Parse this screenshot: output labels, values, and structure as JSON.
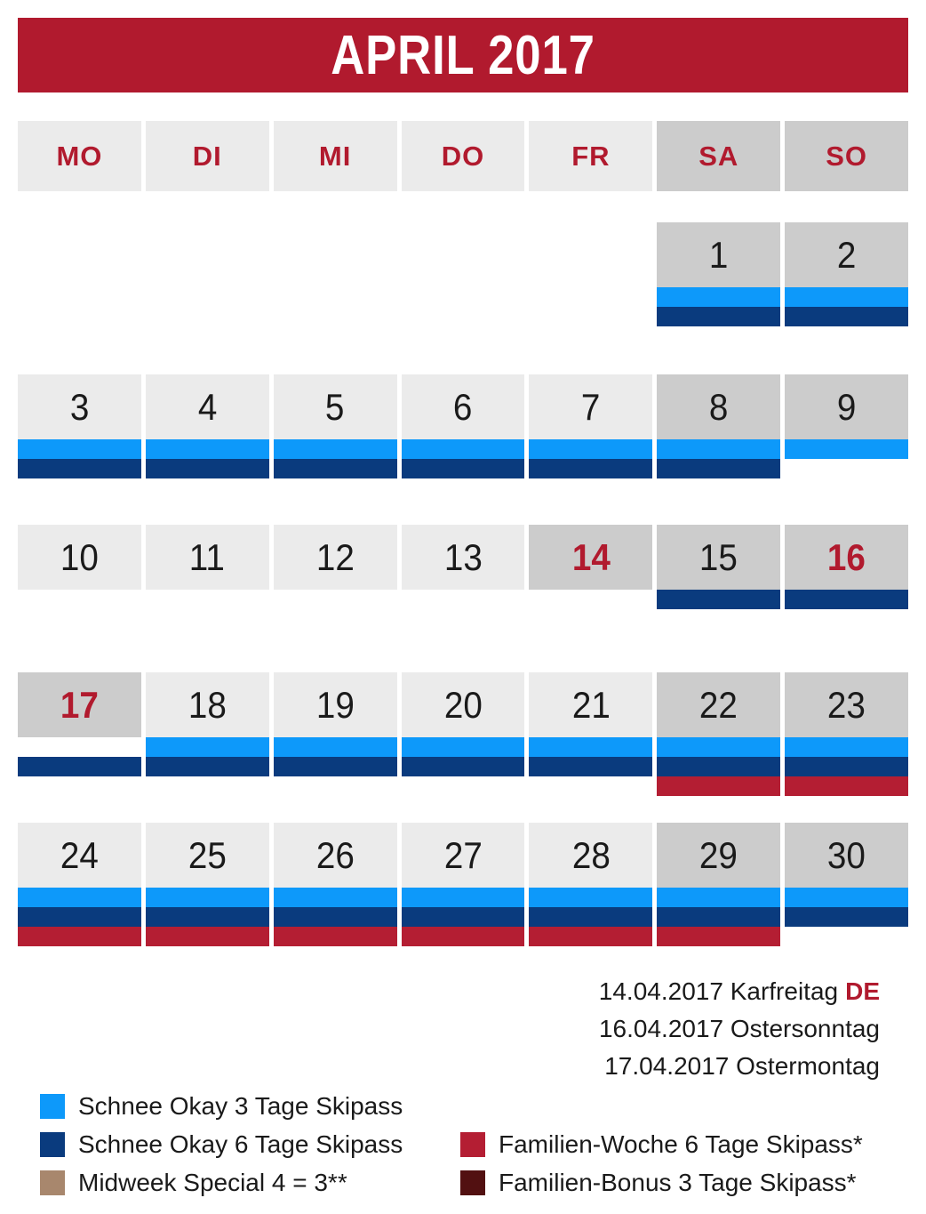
{
  "title": "APRIL 2017",
  "colors": {
    "header_red": "#B11A2E",
    "text_red": "#B11A2E",
    "blue3": "#0D99FA",
    "blue6": "#0A3B7E",
    "family_week_red": "#B41E33",
    "family_bonus_maroon": "#521011",
    "midweek_tan": "#A8876D",
    "cell_light": "#EBEBEB",
    "cell_dark": "#CCCCCC",
    "number_dark": "#1A1A1A"
  },
  "weekday_headers": [
    {
      "label": "MO",
      "weekend": false
    },
    {
      "label": "DI",
      "weekend": false
    },
    {
      "label": "MI",
      "weekend": false
    },
    {
      "label": "DO",
      "weekend": false
    },
    {
      "label": "FR",
      "weekend": false
    },
    {
      "label": "SA",
      "weekend": true
    },
    {
      "label": "SO",
      "weekend": true
    }
  ],
  "weeks": [
    {
      "days": [
        null,
        null,
        null,
        null,
        null,
        {
          "num": "1",
          "bg": "dark",
          "red": false,
          "bars": [
            "blue3",
            "blue6"
          ]
        },
        {
          "num": "2",
          "bg": "dark",
          "red": false,
          "bars": [
            "blue3",
            "blue6"
          ]
        }
      ]
    },
    {
      "days": [
        {
          "num": "3",
          "bg": "light",
          "red": false,
          "bars": [
            "blue3",
            "blue6"
          ]
        },
        {
          "num": "4",
          "bg": "light",
          "red": false,
          "bars": [
            "blue3",
            "blue6"
          ]
        },
        {
          "num": "5",
          "bg": "light",
          "red": false,
          "bars": [
            "blue3",
            "blue6"
          ]
        },
        {
          "num": "6",
          "bg": "light",
          "red": false,
          "bars": [
            "blue3",
            "blue6"
          ]
        },
        {
          "num": "7",
          "bg": "light",
          "red": false,
          "bars": [
            "blue3",
            "blue6"
          ]
        },
        {
          "num": "8",
          "bg": "dark",
          "red": false,
          "bars": [
            "blue3",
            "blue6"
          ]
        },
        {
          "num": "9",
          "bg": "dark",
          "red": false,
          "bars": [
            "blue3"
          ]
        }
      ]
    },
    {
      "days": [
        {
          "num": "10",
          "bg": "light",
          "red": false,
          "bars": []
        },
        {
          "num": "11",
          "bg": "light",
          "red": false,
          "bars": []
        },
        {
          "num": "12",
          "bg": "light",
          "red": false,
          "bars": []
        },
        {
          "num": "13",
          "bg": "light",
          "red": false,
          "bars": []
        },
        {
          "num": "14",
          "bg": "dark",
          "red": true,
          "bars": []
        },
        {
          "num": "15",
          "bg": "dark",
          "red": false,
          "bars": [
            "blue6"
          ]
        },
        {
          "num": "16",
          "bg": "dark",
          "red": true,
          "bars": [
            "blue6"
          ]
        }
      ]
    },
    {
      "days": [
        {
          "num": "17",
          "bg": "dark",
          "red": true,
          "bars": [
            "gap",
            "blue6"
          ]
        },
        {
          "num": "18",
          "bg": "light",
          "red": false,
          "bars": [
            "blue3",
            "blue6"
          ]
        },
        {
          "num": "19",
          "bg": "light",
          "red": false,
          "bars": [
            "blue3",
            "blue6"
          ]
        },
        {
          "num": "20",
          "bg": "light",
          "red": false,
          "bars": [
            "blue3",
            "blue6"
          ]
        },
        {
          "num": "21",
          "bg": "light",
          "red": false,
          "bars": [
            "blue3",
            "blue6"
          ]
        },
        {
          "num": "22",
          "bg": "dark",
          "red": false,
          "bars": [
            "blue3",
            "blue6",
            "family_week"
          ]
        },
        {
          "num": "23",
          "bg": "dark",
          "red": false,
          "bars": [
            "blue3",
            "blue6",
            "family_week"
          ]
        }
      ]
    },
    {
      "days": [
        {
          "num": "24",
          "bg": "light",
          "red": false,
          "bars": [
            "blue3",
            "blue6",
            "family_week"
          ]
        },
        {
          "num": "25",
          "bg": "light",
          "red": false,
          "bars": [
            "blue3",
            "blue6",
            "family_week"
          ]
        },
        {
          "num": "26",
          "bg": "light",
          "red": false,
          "bars": [
            "blue3",
            "blue6",
            "family_week"
          ]
        },
        {
          "num": "27",
          "bg": "light",
          "red": false,
          "bars": [
            "blue3",
            "blue6",
            "family_week"
          ]
        },
        {
          "num": "28",
          "bg": "light",
          "red": false,
          "bars": [
            "blue3",
            "blue6",
            "family_week"
          ]
        },
        {
          "num": "29",
          "bg": "dark",
          "red": false,
          "bars": [
            "blue3",
            "blue6",
            "family_week"
          ]
        },
        {
          "num": "30",
          "bg": "dark",
          "red": false,
          "bars": [
            "blue3",
            "blue6"
          ]
        }
      ]
    }
  ],
  "notes": [
    {
      "text": "14.04.2017 Karfreitag",
      "tag": "DE"
    },
    {
      "text": "16.04.2017 Ostersonntag",
      "tag": ""
    },
    {
      "text": "17.04.2017 Ostermontag",
      "tag": ""
    }
  ],
  "legend": {
    "left": [
      {
        "color_key": "blue3",
        "label": "Schnee Okay 3 Tage Skipass"
      },
      {
        "color_key": "blue6",
        "label": "Schnee Okay 6 Tage Skipass"
      },
      {
        "color_key": "midweek_tan",
        "label": "Midweek Special 4 = 3**"
      }
    ],
    "right": [
      {
        "color_key": "family_week_red",
        "label": "Familien-Woche 6 Tage Skipass*"
      },
      {
        "color_key": "family_bonus_maroon",
        "label": "Familien-Bonus 3 Tage Skipass*"
      }
    ]
  }
}
